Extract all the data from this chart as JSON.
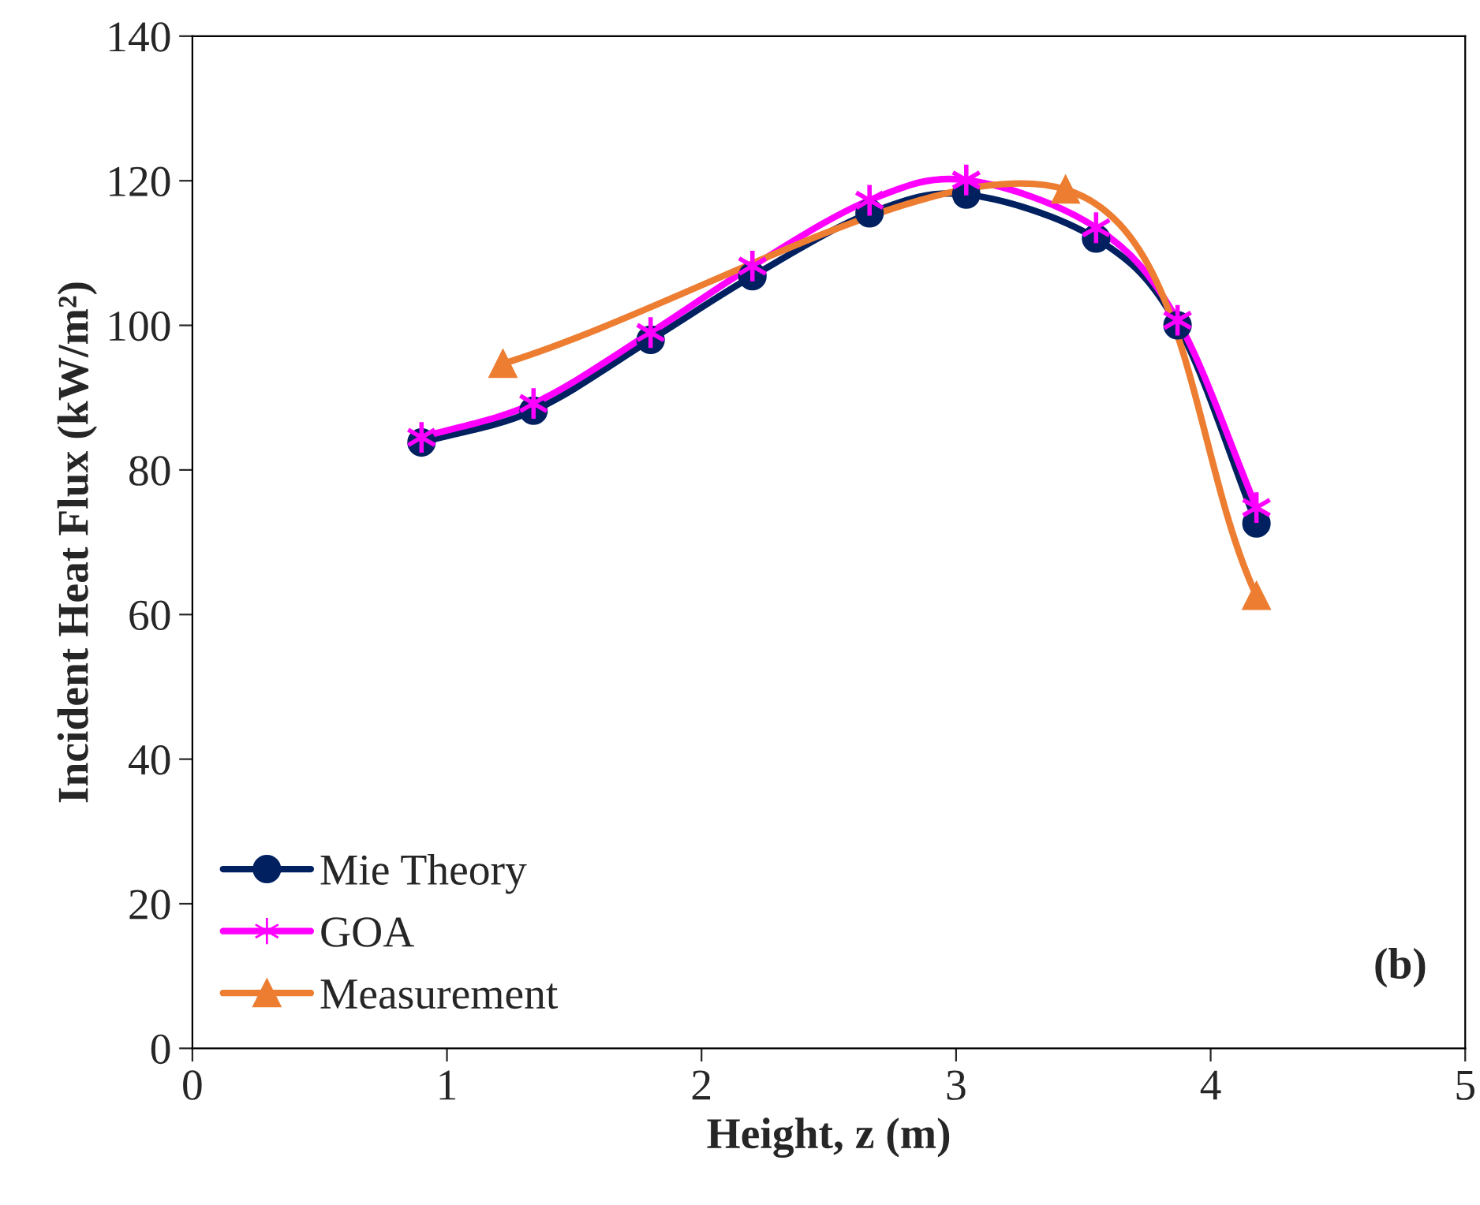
{
  "chart_data": {
    "type": "line",
    "xlabel": "Height, z (m)",
    "ylabel": "Incident Heat Flux (kW/m²)",
    "xlim": [
      0,
      5
    ],
    "xticks": [
      0,
      1,
      2,
      3,
      4,
      5
    ],
    "ylim": [
      0,
      140
    ],
    "yticks": [
      0,
      20,
      40,
      60,
      80,
      100,
      120,
      140
    ],
    "grid": false,
    "legend": "bottom left",
    "line_style": "solid",
    "annotations": [
      "(b)"
    ],
    "series": [
      {
        "name": "Mie Theory",
        "color": "#002060",
        "marker": "circle",
        "x": [
          0.9,
          1.34,
          1.8,
          2.2,
          2.66,
          3.04,
          3.55,
          3.87,
          4.18
        ],
        "values": [
          83.8,
          88.2,
          98.0,
          106.8,
          115.5,
          118.1,
          112.0,
          100.0,
          72.6
        ]
      },
      {
        "name": "GOA",
        "color": "#ff00ff",
        "marker": "cross",
        "x": [
          0.9,
          1.34,
          1.8,
          2.2,
          2.66,
          3.04,
          3.55,
          3.87,
          4.18
        ],
        "values": [
          84.5,
          89.2,
          99.0,
          108.2,
          117.3,
          120.1,
          113.5,
          100.7,
          74.8
        ]
      },
      {
        "name": "Measurement",
        "color": "#ed7d31",
        "marker": "triangle",
        "x": [
          1.22,
          3.43,
          4.18
        ],
        "values": [
          94.7,
          118.8,
          62.6
        ]
      }
    ]
  }
}
